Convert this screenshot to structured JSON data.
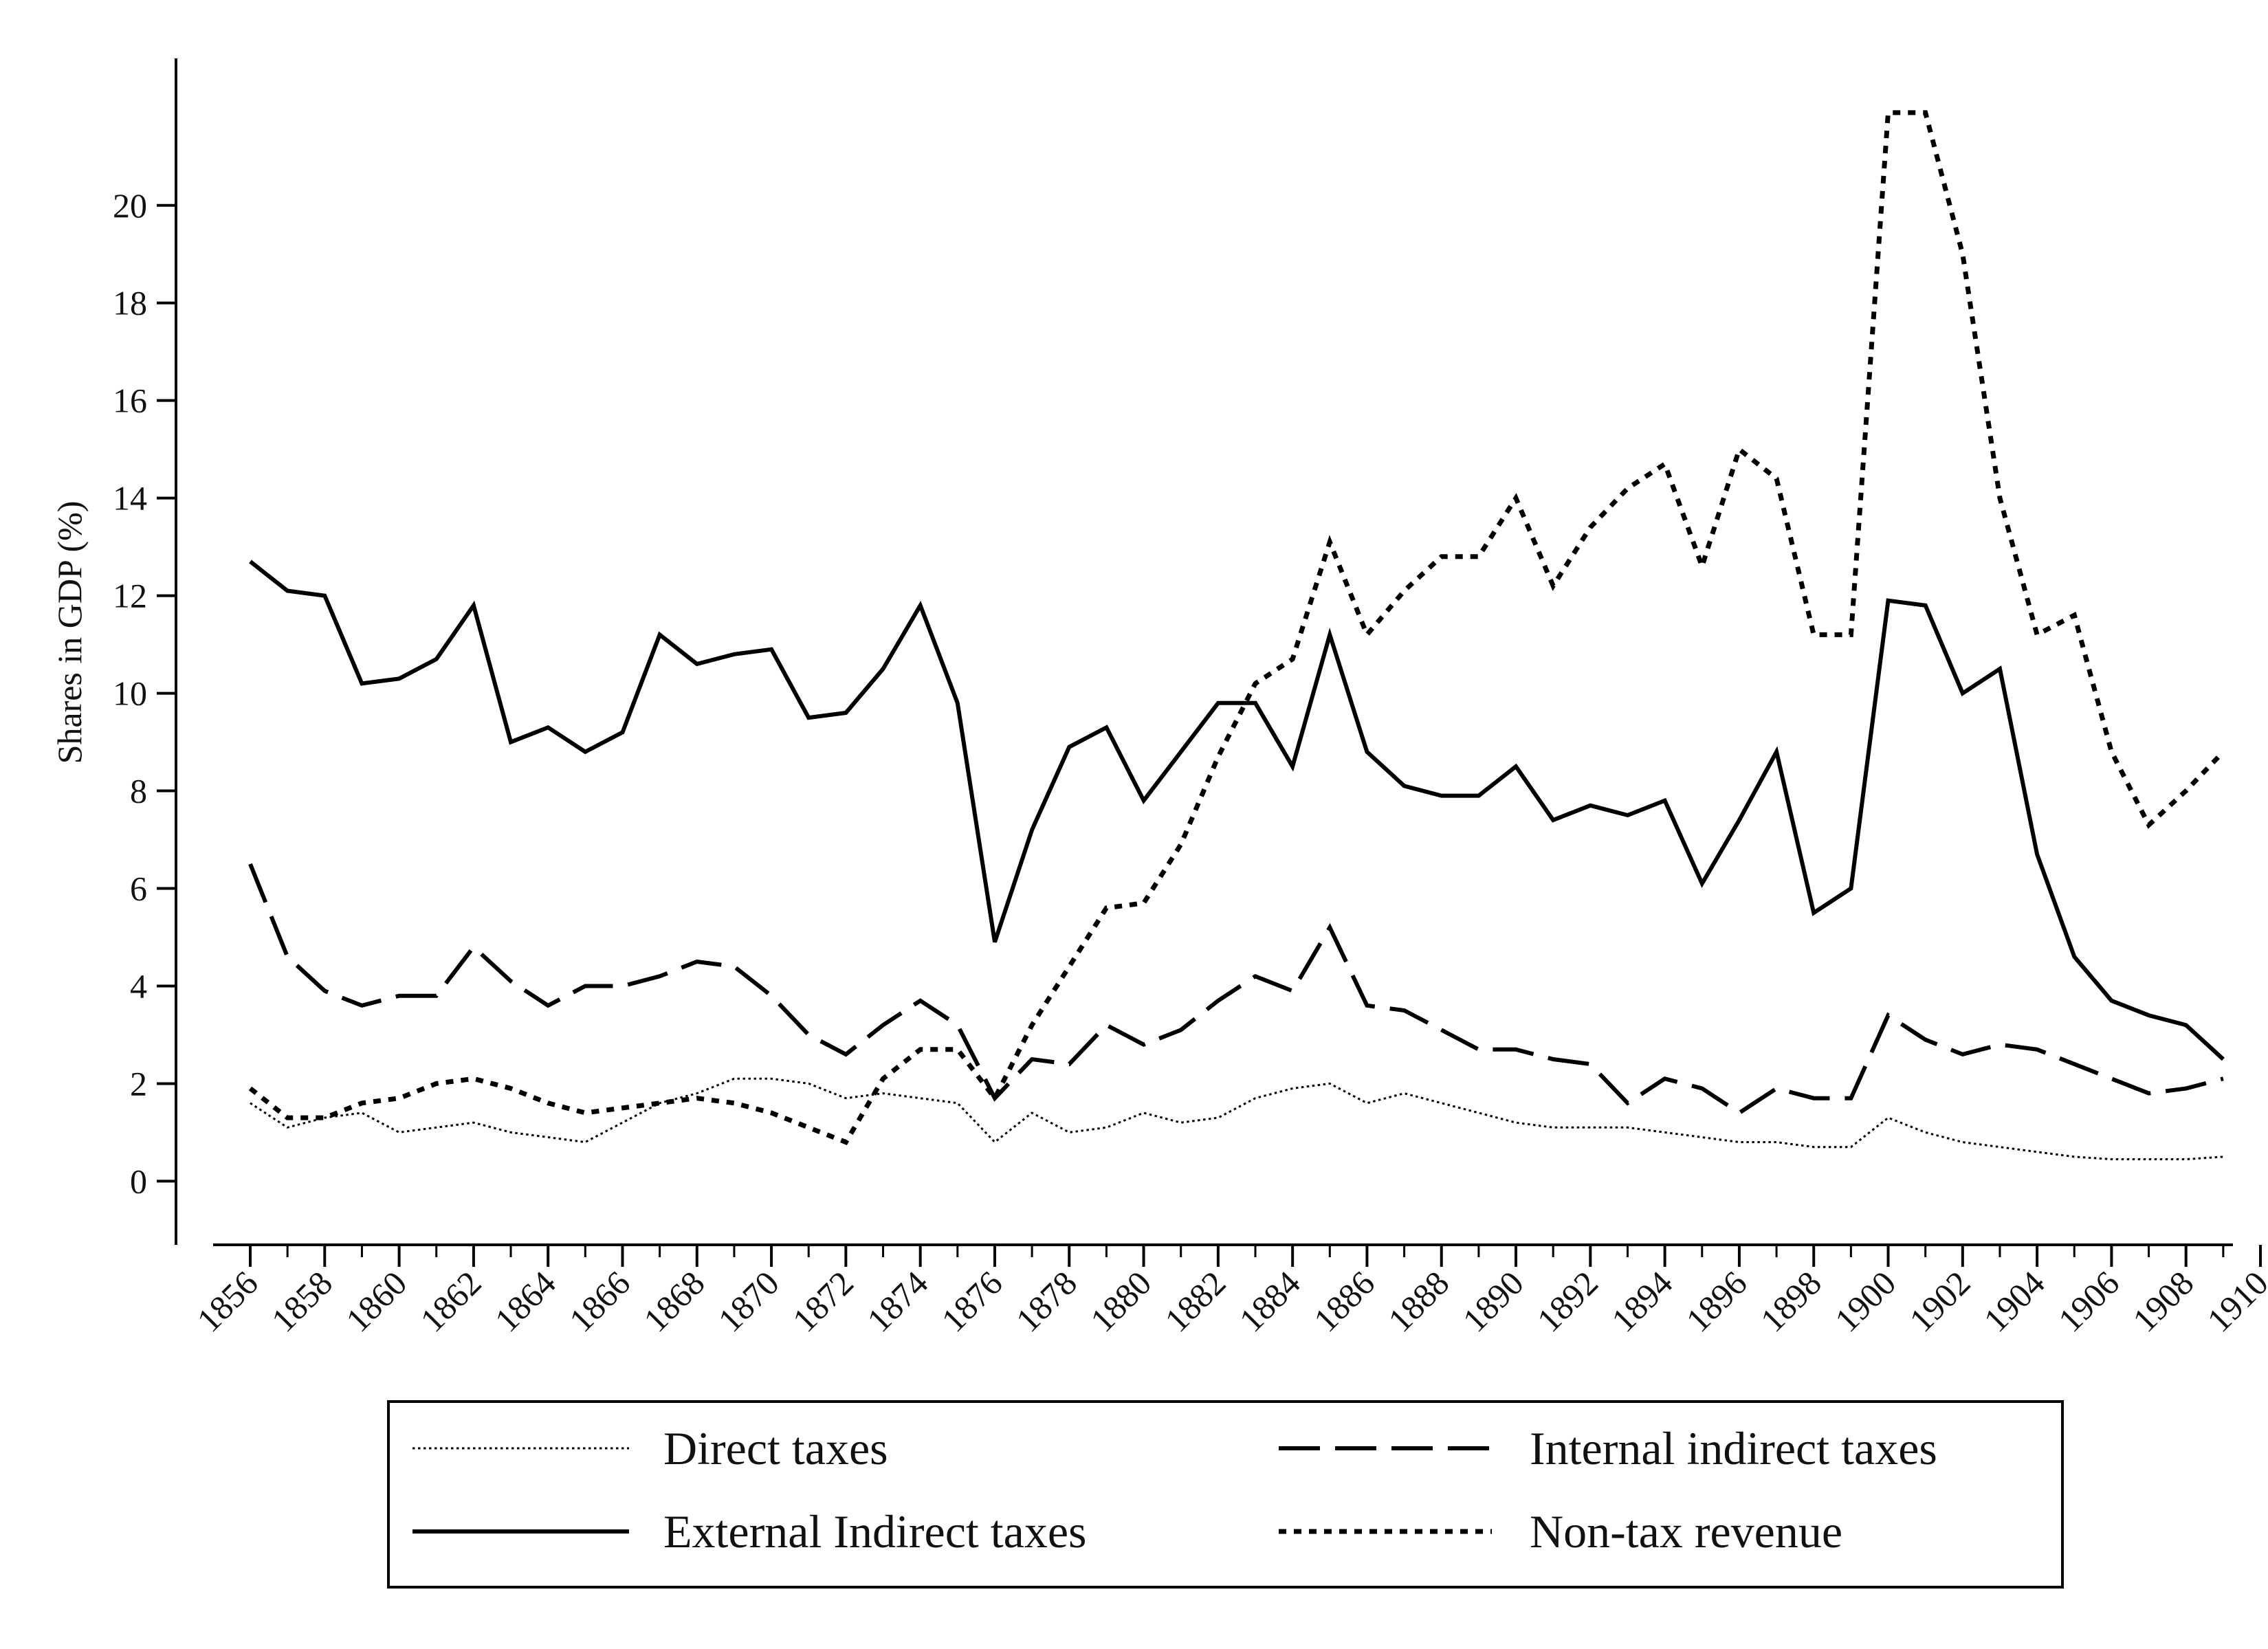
{
  "chart_data": {
    "type": "line",
    "title": "",
    "xlabel": "",
    "ylabel": "Shares in GDP (%)",
    "xlim": [
      1856,
      1910
    ],
    "ylim": [
      -0.6,
      22.8
    ],
    "y_ticks": [
      0,
      2,
      4,
      6,
      8,
      10,
      12,
      14,
      16,
      18,
      20
    ],
    "x_ticks": [
      1856,
      1858,
      1860,
      1862,
      1864,
      1866,
      1868,
      1870,
      1872,
      1874,
      1876,
      1878,
      1880,
      1882,
      1884,
      1886,
      1888,
      1890,
      1892,
      1894,
      1896,
      1898,
      1900,
      1902,
      1904,
      1906,
      1908,
      1910
    ],
    "grid": false,
    "legend_position": "bottom",
    "x": [
      1856,
      1857,
      1858,
      1859,
      1860,
      1861,
      1862,
      1863,
      1864,
      1865,
      1866,
      1867,
      1868,
      1869,
      1870,
      1871,
      1872,
      1873,
      1874,
      1875,
      1876,
      1877,
      1878,
      1879,
      1880,
      1881,
      1882,
      1883,
      1884,
      1885,
      1886,
      1887,
      1888,
      1889,
      1890,
      1891,
      1892,
      1893,
      1894,
      1895,
      1896,
      1897,
      1898,
      1899,
      1900,
      1901,
      1902,
      1903,
      1904,
      1905,
      1906,
      1907,
      1908,
      1909
    ],
    "series": [
      {
        "name": "Direct taxes",
        "style": "fine-dotted",
        "values": [
          1.6,
          1.1,
          1.3,
          1.4,
          1.0,
          1.1,
          1.2,
          1.0,
          0.9,
          0.8,
          1.2,
          1.6,
          1.8,
          2.1,
          2.1,
          2.0,
          1.7,
          1.8,
          1.7,
          1.6,
          0.8,
          1.4,
          1.0,
          1.1,
          1.4,
          1.2,
          1.3,
          1.7,
          1.9,
          2.0,
          1.6,
          1.8,
          1.6,
          1.4,
          1.2,
          1.1,
          1.1,
          1.1,
          1.0,
          0.9,
          0.8,
          0.8,
          0.7,
          0.7,
          1.3,
          1.0,
          0.8,
          0.7,
          0.6,
          0.5,
          0.45,
          0.45,
          0.45,
          0.5
        ]
      },
      {
        "name": "Internal indirect taxes",
        "style": "long-dash",
        "values": [
          6.5,
          4.6,
          3.9,
          3.6,
          3.8,
          3.8,
          4.8,
          4.1,
          3.6,
          4.0,
          4.0,
          4.2,
          4.5,
          4.4,
          3.8,
          3.0,
          2.6,
          3.2,
          3.7,
          3.2,
          1.7,
          2.5,
          2.4,
          3.2,
          2.8,
          3.1,
          3.7,
          4.2,
          3.9,
          5.2,
          3.6,
          3.5,
          3.1,
          2.7,
          2.7,
          2.5,
          2.4,
          1.6,
          2.1,
          1.9,
          1.4,
          1.9,
          1.7,
          1.7,
          3.4,
          2.9,
          2.6,
          2.8,
          2.7,
          2.4,
          2.1,
          1.8,
          1.9,
          2.1
        ]
      },
      {
        "name": "External Indirect taxes",
        "style": "solid",
        "values": [
          12.7,
          12.1,
          12.0,
          10.2,
          10.3,
          10.7,
          11.8,
          9.0,
          9.3,
          8.8,
          9.2,
          11.2,
          10.6,
          10.8,
          10.9,
          9.5,
          9.6,
          10.5,
          11.8,
          9.8,
          4.9,
          7.2,
          8.9,
          9.3,
          7.8,
          8.8,
          9.8,
          9.8,
          8.5,
          11.2,
          8.8,
          8.1,
          7.9,
          7.9,
          8.5,
          7.4,
          7.7,
          7.5,
          7.8,
          6.1,
          7.4,
          8.8,
          5.5,
          6.0,
          11.9,
          11.8,
          10.0,
          10.5,
          6.7,
          4.6,
          3.7,
          3.4,
          3.2,
          2.5
        ]
      },
      {
        "name": "Non-tax revenue",
        "style": "short-dash",
        "values": [
          1.9,
          1.3,
          1.3,
          1.6,
          1.7,
          2.0,
          2.1,
          1.9,
          1.6,
          1.4,
          1.5,
          1.6,
          1.7,
          1.6,
          1.4,
          1.1,
          0.8,
          2.1,
          2.7,
          2.7,
          1.7,
          3.2,
          4.4,
          5.6,
          5.7,
          6.9,
          8.7,
          10.2,
          10.7,
          13.1,
          11.2,
          12.1,
          12.8,
          12.8,
          14.0,
          12.2,
          13.4,
          14.2,
          14.7,
          12.6,
          15.0,
          14.4,
          11.2,
          11.2,
          21.9,
          21.9,
          19.0,
          14.0,
          11.2,
          11.6,
          8.8,
          7.3,
          8.0,
          8.8
        ]
      }
    ],
    "legend": [
      {
        "name": "Direct taxes",
        "style": "fine-dotted"
      },
      {
        "name": "Internal indirect taxes",
        "style": "long-dash"
      },
      {
        "name": "External Indirect taxes",
        "style": "solid"
      },
      {
        "name": "Non-tax revenue",
        "style": "short-dash"
      }
    ]
  }
}
